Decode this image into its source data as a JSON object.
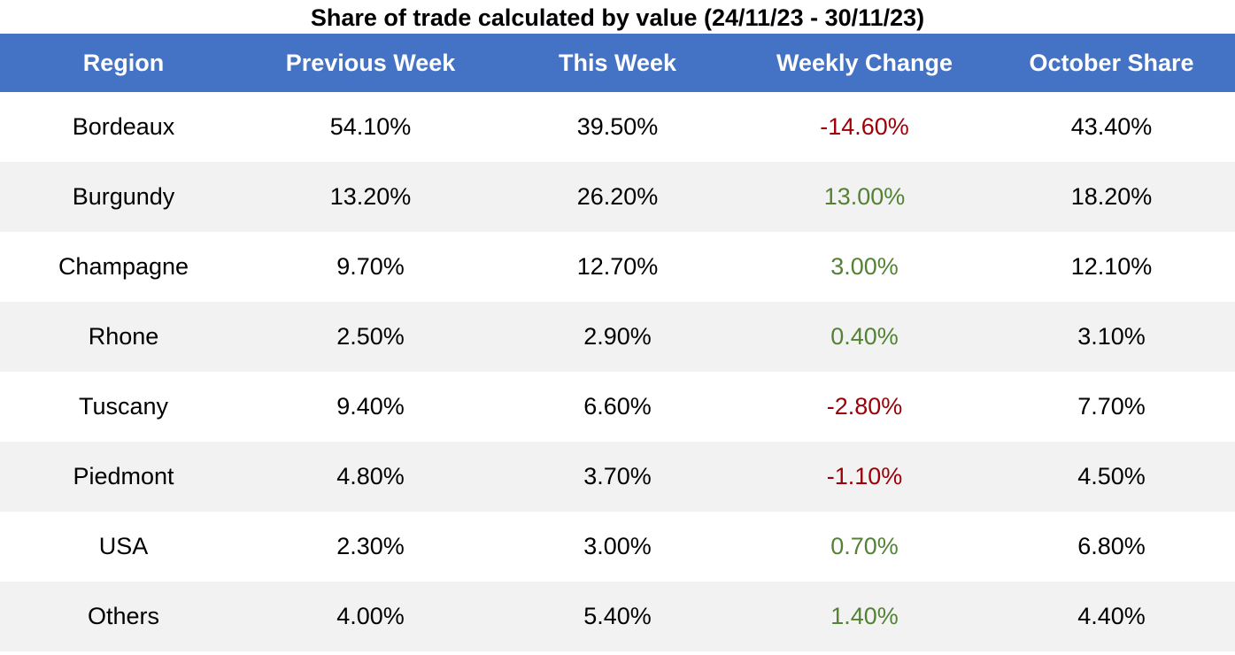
{
  "chart_data": {
    "type": "table",
    "title": "Share of trade calculated by value (24/11/23 - 30/11/23)",
    "columns": [
      "Region",
      "Previous Week",
      "This Week",
      "Weekly Change",
      "October Share"
    ],
    "rows": [
      [
        "Bordeaux",
        "54.10%",
        "39.50%",
        "-14.60%",
        "43.40%"
      ],
      [
        "Burgundy",
        "13.20%",
        "26.20%",
        "13.00%",
        "18.20%"
      ],
      [
        "Champagne",
        "9.70%",
        "12.70%",
        "3.00%",
        "12.10%"
      ],
      [
        "Rhone",
        "2.50%",
        "2.90%",
        "0.40%",
        "3.10%"
      ],
      [
        "Tuscany",
        "9.40%",
        "6.60%",
        "-2.80%",
        "7.70%"
      ],
      [
        "Piedmont",
        "4.80%",
        "3.70%",
        "-1.10%",
        "4.50%"
      ],
      [
        "USA",
        "2.30%",
        "3.00%",
        "0.70%",
        "6.80%"
      ],
      [
        "Others",
        "4.00%",
        "5.40%",
        "1.40%",
        "4.40%"
      ]
    ],
    "colors": {
      "header_bg": "#4472c4",
      "header_text": "#ffffff",
      "stripe": "#f2f2f2",
      "negative": "#9c0006",
      "positive": "#548235"
    }
  }
}
